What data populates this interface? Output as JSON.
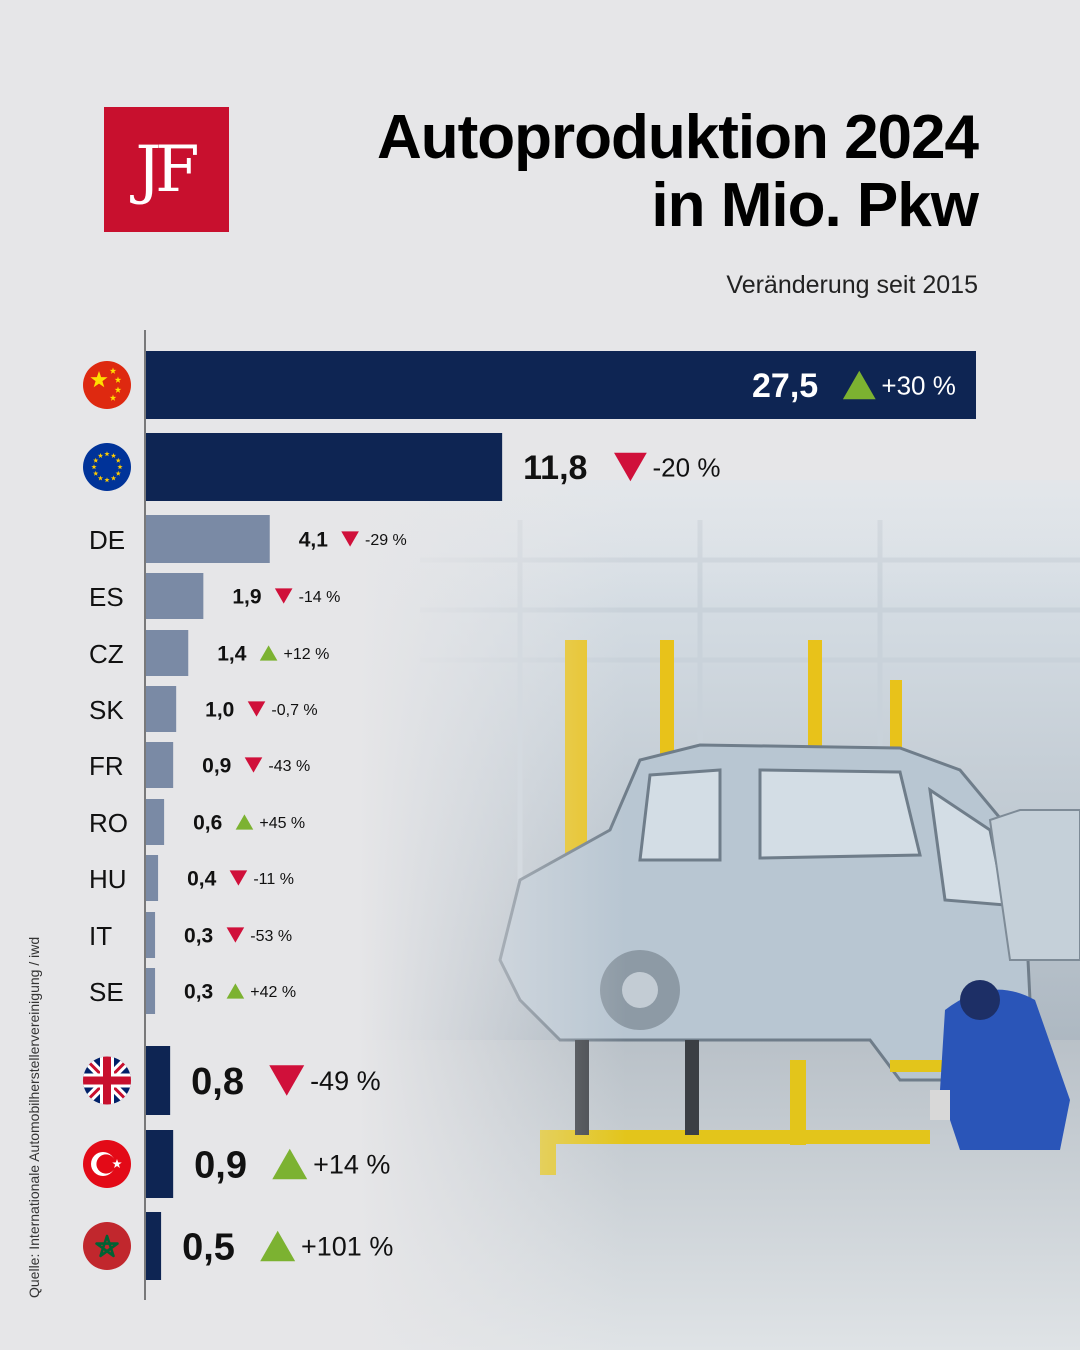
{
  "logo": {
    "text": "JF"
  },
  "header": {
    "title_line1": "Autoproduktion 2024",
    "title_line2": "in Mio. Pkw",
    "subtitle": "Veränderung seit 2015"
  },
  "source": "Quelle: Internationale Automobilherstellervereinigung / iwd",
  "colors": {
    "bar_major": "#0e2553",
    "bar_eu_country": "#7a8aa5",
    "up": "#7cb231",
    "down": "#d0103a"
  },
  "chart_data": {
    "type": "bar",
    "orientation": "horizontal",
    "unit": "Mio. Pkw",
    "change_label": "Veränderung seit 2015",
    "rows": [
      {
        "label": "",
        "icon": "china-flag-icon",
        "value": 27.5,
        "value_text": "27,5",
        "change": "+30 %",
        "direction": "up",
        "group": "major"
      },
      {
        "label": "",
        "icon": "eu-flag-icon",
        "value": 11.8,
        "value_text": "11,8",
        "change": "-20 %",
        "direction": "down",
        "group": "major"
      },
      {
        "label": "DE",
        "value": 4.1,
        "value_text": "4,1",
        "change": "-29 %",
        "direction": "down",
        "group": "eu"
      },
      {
        "label": "ES",
        "value": 1.9,
        "value_text": "1,9",
        "change": "-14 %",
        "direction": "down",
        "group": "eu"
      },
      {
        "label": "CZ",
        "value": 1.4,
        "value_text": "1,4",
        "change": "+12 %",
        "direction": "up",
        "group": "eu"
      },
      {
        "label": "SK",
        "value": 1.0,
        "value_text": "1,0",
        "change": "-0,7 %",
        "direction": "down",
        "group": "eu"
      },
      {
        "label": "FR",
        "value": 0.9,
        "value_text": "0,9",
        "change": "-43 %",
        "direction": "down",
        "group": "eu"
      },
      {
        "label": "RO",
        "value": 0.6,
        "value_text": "0,6",
        "change": "+45 %",
        "direction": "up",
        "group": "eu"
      },
      {
        "label": "HU",
        "value": 0.4,
        "value_text": "0,4",
        "change": "-11 %",
        "direction": "down",
        "group": "eu"
      },
      {
        "label": "IT",
        "value": 0.3,
        "value_text": "0,3",
        "change": "-53 %",
        "direction": "down",
        "group": "eu"
      },
      {
        "label": "SE",
        "value": 0.3,
        "value_text": "0,3",
        "change": "+42 %",
        "direction": "up",
        "group": "eu"
      },
      {
        "label": "",
        "icon": "uk-flag-icon",
        "value": 0.8,
        "value_text": "0,8",
        "change": "-49 %",
        "direction": "down",
        "group": "other"
      },
      {
        "label": "",
        "icon": "turkey-flag-icon",
        "value": 0.9,
        "value_text": "0,9",
        "change": "+14 %",
        "direction": "up",
        "group": "other"
      },
      {
        "label": "",
        "icon": "morocco-flag-icon",
        "value": 0.5,
        "value_text": "0,5",
        "change": "+101 %",
        "direction": "up",
        "group": "other"
      }
    ]
  }
}
